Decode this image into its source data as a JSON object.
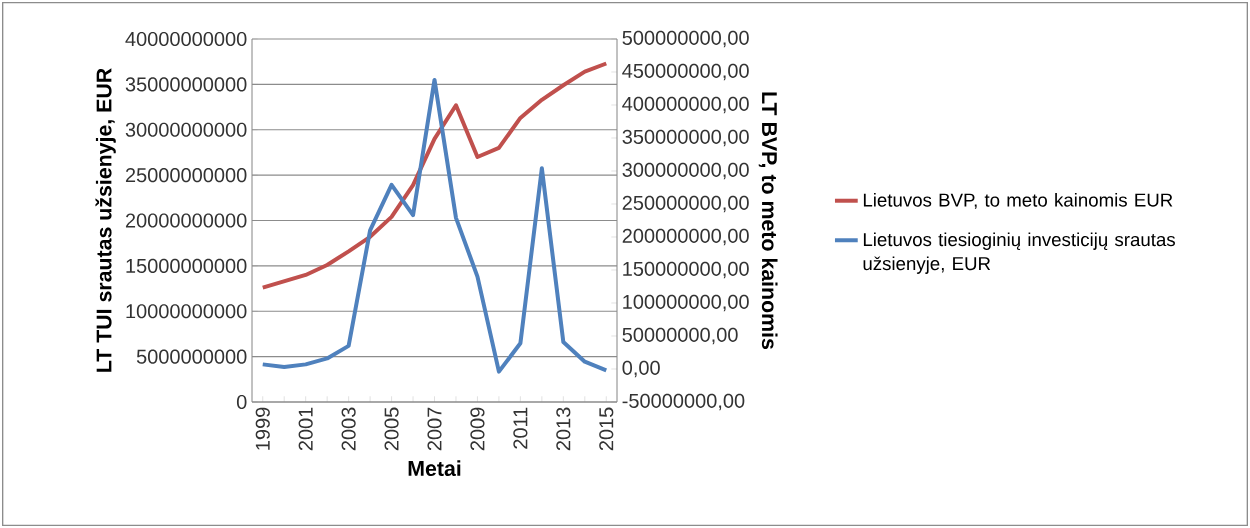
{
  "chart_data": {
    "type": "line",
    "xlabel": "Metai",
    "ylabel": "LT TUI srautas užsienyje, EUR",
    "y2label": "LT BVP, to meto kainomis",
    "categories": [
      "1999",
      null,
      "2001",
      null,
      "2003",
      null,
      "2005",
      null,
      "2007",
      null,
      "2009",
      null,
      "2011",
      null,
      "2013",
      null,
      "2015"
    ],
    "series": [
      {
        "name": "Lietuvos BVP, to meto kainomis EUR",
        "color": "#c0504d",
        "values": [
          12600000000,
          13300000000,
          14000000000,
          15100000000,
          16600000000,
          18200000000,
          20400000000,
          23900000000,
          29000000000,
          32700000000,
          27000000000,
          28000000000,
          31300000000,
          33300000000,
          34900000000,
          36400000000,
          37300000000
        ]
      },
      {
        "name": "Lietuvos tiesioginių investicijų srautas užsienyje, EUR",
        "color": "#4f81bd",
        "axis": "y2",
        "values": [
          7000000,
          3000000,
          7000000,
          16000000,
          35000000,
          210000000,
          279000000,
          233000000,
          438000000,
          229000000,
          140000000,
          -4000000,
          39000000,
          304000000,
          41000000,
          11000000,
          -2000000
        ]
      }
    ],
    "ylim": [
      0,
      40000000000
    ],
    "yticks": [
      0,
      5000000000,
      10000000000,
      15000000000,
      20000000000,
      25000000000,
      30000000000,
      35000000000,
      40000000000
    ],
    "y2lim": [
      -50000000,
      500000000
    ],
    "y2ticks": [
      {
        "value": -50000000,
        "label": "-50000000,00"
      },
      {
        "value": 0,
        "label": "0,00"
      },
      {
        "value": 50000000,
        "label": "50000000,00"
      },
      {
        "value": 100000000,
        "label": "100000000,00"
      },
      {
        "value": 150000000,
        "label": "150000000,00"
      },
      {
        "value": 200000000,
        "label": "200000000,00"
      },
      {
        "value": 250000000,
        "label": "250000000,00"
      },
      {
        "value": 300000000,
        "label": "300000000,00"
      },
      {
        "value": 350000000,
        "label": "350000000,00"
      },
      {
        "value": 400000000,
        "label": "400000000,00"
      },
      {
        "value": 450000000,
        "label": "450000000,00"
      },
      {
        "value": 500000000,
        "label": "500000000,00"
      }
    ],
    "grid": "y",
    "legend": "right",
    "marker": "none",
    "line_style": "solid"
  }
}
